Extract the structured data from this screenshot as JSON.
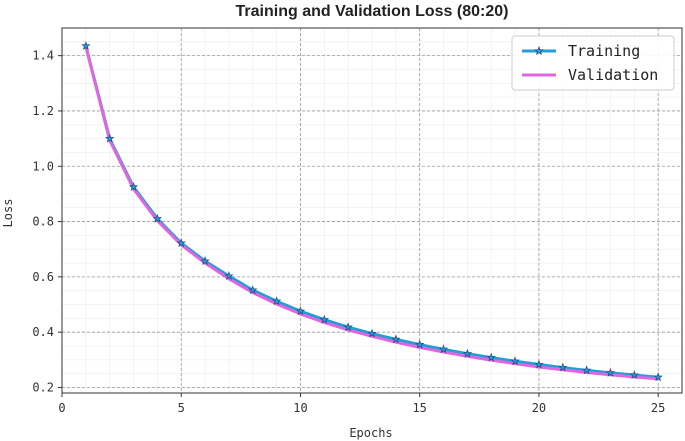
{
  "chart_data": {
    "type": "line",
    "title": "Training and Validation Loss (80:20)",
    "xlabel": "Epochs",
    "ylabel": "Loss",
    "xlim": [
      0,
      26
    ],
    "ylim": [
      0.18,
      1.5
    ],
    "xticks": [
      0,
      5,
      10,
      15,
      20,
      25
    ],
    "xtick_labels": [
      "0",
      "5",
      "10",
      "15",
      "20",
      "25"
    ],
    "yticks": [
      0.2,
      0.4,
      0.6,
      0.8,
      1.0,
      1.2,
      1.4
    ],
    "ytick_labels": [
      "0.2",
      "0.4",
      "0.6",
      "0.8",
      "1.0",
      "1.2",
      "1.4"
    ],
    "grid": true,
    "legend_position": "top-right",
    "x": [
      1,
      2,
      3,
      4,
      5,
      6,
      7,
      8,
      9,
      10,
      11,
      12,
      13,
      14,
      15,
      16,
      17,
      18,
      19,
      20,
      21,
      22,
      23,
      24,
      25
    ],
    "series": [
      {
        "name": "Training",
        "color": "#1f9fd6",
        "marker": "star",
        "values": [
          1.435,
          1.1,
          0.925,
          0.81,
          0.722,
          0.657,
          0.603,
          0.552,
          0.512,
          0.476,
          0.445,
          0.418,
          0.395,
          0.374,
          0.355,
          0.338,
          0.322,
          0.308,
          0.295,
          0.283,
          0.272,
          0.262,
          0.253,
          0.245,
          0.237
        ]
      },
      {
        "name": "Validation",
        "color": "#e066e0",
        "marker": "none",
        "values": [
          1.432,
          1.094,
          0.918,
          0.803,
          0.716,
          0.65,
          0.593,
          0.543,
          0.502,
          0.466,
          0.435,
          0.408,
          0.385,
          0.364,
          0.345,
          0.328,
          0.313,
          0.299,
          0.286,
          0.274,
          0.264,
          0.254,
          0.246,
          0.238,
          0.231
        ]
      }
    ]
  }
}
